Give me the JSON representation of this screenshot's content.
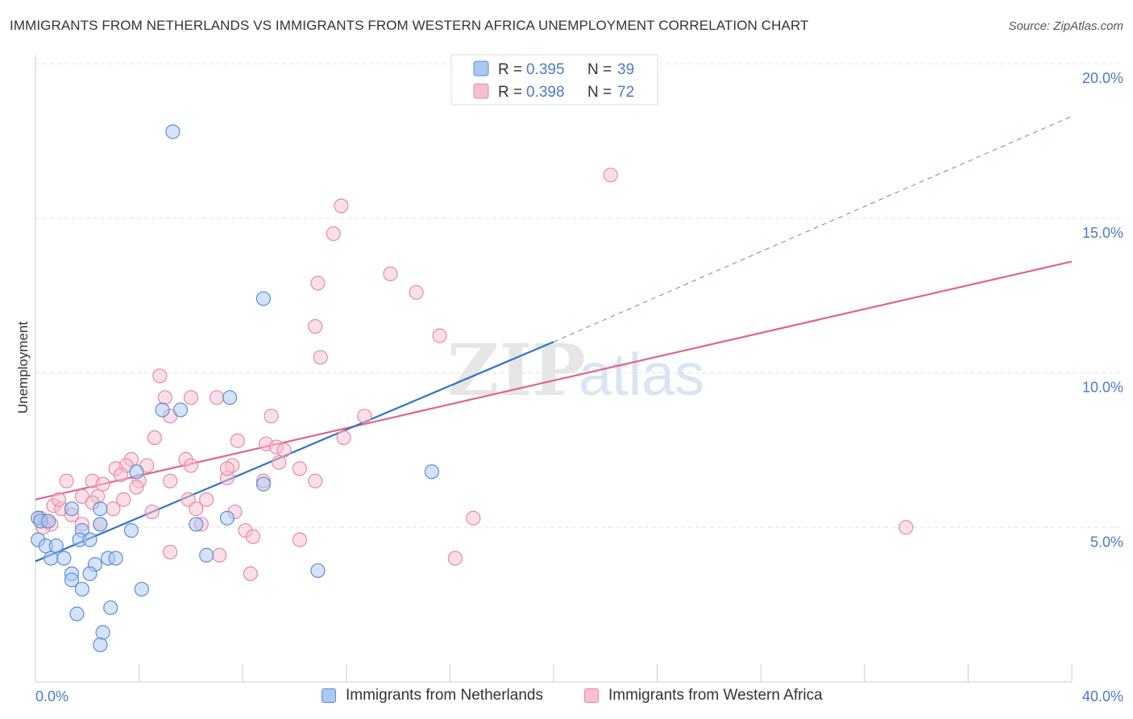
{
  "header": {
    "title": "IMMIGRANTS FROM NETHERLANDS VS IMMIGRANTS FROM WESTERN AFRICA UNEMPLOYMENT CORRELATION CHART",
    "source": "Source: ZipAtlas.com"
  },
  "watermark": {
    "zip": "ZIP",
    "atlas": "atlas"
  },
  "colors": {
    "netherlands_fill": "#a9c8f2",
    "netherlands_stroke": "#5b8fd6",
    "netherlands_line": "#2f73c9",
    "western_africa_fill": "#f7bfd0",
    "western_africa_stroke": "#e68aa8",
    "western_africa_line": "#e0648e",
    "axis_label_blue": "#4a7cc7",
    "grid": "#e3e3e3"
  },
  "legend_top": {
    "r_label": "R =",
    "n_label": "N =",
    "rows": [
      {
        "r": "0.395",
        "n": "39"
      },
      {
        "r": "0.398",
        "n": "72"
      }
    ]
  },
  "chart_data": {
    "type": "scatter",
    "title": "IMMIGRANTS FROM NETHERLANDS VS IMMIGRANTS FROM WESTERN AFRICA UNEMPLOYMENT CORRELATION CHART",
    "xlabel": "",
    "ylabel": "Unemployment",
    "xlim": [
      0,
      40
    ],
    "ylim": [
      0,
      20
    ],
    "x_tick_labels": [
      "0.0%",
      "40.0%"
    ],
    "y_tick_labels": [
      "5.0%",
      "10.0%",
      "15.0%",
      "20.0%"
    ],
    "y_ticks": [
      5,
      10,
      15,
      20
    ],
    "grid": true,
    "legend_position": "top-center",
    "series": [
      {
        "name": "Immigrants from Netherlands",
        "r": 0.395,
        "n": 39,
        "trend": {
          "x0": 0.0,
          "y0": 3.9,
          "x1": 20.0,
          "y1": 11.0,
          "dashed_to_x": 40.0,
          "dashed_to_y": 18.3
        },
        "points": [
          [
            5.3,
            17.8
          ],
          [
            8.8,
            12.4
          ],
          [
            7.5,
            9.2
          ],
          [
            4.9,
            8.8
          ],
          [
            5.6,
            8.8
          ],
          [
            15.3,
            6.8
          ],
          [
            3.9,
            6.8
          ],
          [
            8.8,
            6.4
          ],
          [
            1.4,
            5.6
          ],
          [
            2.5,
            5.6
          ],
          [
            0.1,
            5.3
          ],
          [
            0.2,
            5.2
          ],
          [
            2.5,
            5.1
          ],
          [
            6.2,
            5.1
          ],
          [
            7.4,
            5.3
          ],
          [
            1.8,
            4.9
          ],
          [
            3.7,
            4.9
          ],
          [
            0.1,
            4.6
          ],
          [
            1.7,
            4.6
          ],
          [
            2.1,
            4.6
          ],
          [
            0.4,
            4.4
          ],
          [
            0.8,
            4.4
          ],
          [
            0.6,
            4.0
          ],
          [
            1.1,
            4.0
          ],
          [
            2.8,
            4.0
          ],
          [
            3.1,
            4.0
          ],
          [
            6.6,
            4.1
          ],
          [
            2.3,
            3.8
          ],
          [
            1.4,
            3.5
          ],
          [
            2.1,
            3.5
          ],
          [
            10.9,
            3.6
          ],
          [
            1.4,
            3.3
          ],
          [
            1.8,
            3.0
          ],
          [
            4.1,
            3.0
          ],
          [
            2.9,
            2.4
          ],
          [
            1.6,
            2.2
          ],
          [
            2.6,
            1.6
          ],
          [
            2.5,
            1.2
          ],
          [
            0.5,
            5.2
          ]
        ]
      },
      {
        "name": "Immigrants from Western Africa",
        "r": 0.398,
        "n": 72,
        "trend": {
          "x0": 0.0,
          "y0": 5.9,
          "x1": 40.0,
          "y1": 13.6
        },
        "points": [
          [
            22.2,
            16.4
          ],
          [
            11.8,
            15.4
          ],
          [
            11.5,
            14.5
          ],
          [
            13.7,
            13.2
          ],
          [
            10.9,
            12.9
          ],
          [
            14.7,
            12.6
          ],
          [
            10.8,
            11.5
          ],
          [
            15.6,
            11.2
          ],
          [
            11.0,
            10.5
          ],
          [
            4.8,
            9.9
          ],
          [
            5.0,
            9.2
          ],
          [
            6.0,
            9.2
          ],
          [
            7.0,
            9.2
          ],
          [
            5.2,
            8.6
          ],
          [
            9.1,
            8.6
          ],
          [
            12.7,
            8.6
          ],
          [
            4.6,
            7.9
          ],
          [
            11.9,
            7.9
          ],
          [
            7.8,
            7.8
          ],
          [
            8.9,
            7.7
          ],
          [
            9.3,
            7.6
          ],
          [
            9.6,
            7.5
          ],
          [
            3.7,
            7.2
          ],
          [
            5.8,
            7.2
          ],
          [
            6.0,
            7.0
          ],
          [
            7.6,
            7.0
          ],
          [
            9.4,
            7.1
          ],
          [
            3.5,
            7.0
          ],
          [
            3.1,
            6.9
          ],
          [
            10.2,
            6.9
          ],
          [
            3.3,
            6.7
          ],
          [
            7.4,
            6.6
          ],
          [
            1.2,
            6.5
          ],
          [
            2.2,
            6.5
          ],
          [
            4.0,
            6.5
          ],
          [
            5.2,
            6.5
          ],
          [
            8.8,
            6.5
          ],
          [
            10.8,
            6.5
          ],
          [
            2.6,
            6.4
          ],
          [
            3.9,
            6.3
          ],
          [
            1.8,
            6.0
          ],
          [
            2.4,
            6.0
          ],
          [
            3.4,
            5.9
          ],
          [
            5.9,
            5.9
          ],
          [
            6.6,
            5.9
          ],
          [
            0.7,
            5.7
          ],
          [
            2.2,
            5.8
          ],
          [
            1.0,
            5.6
          ],
          [
            3.0,
            5.6
          ],
          [
            7.7,
            5.5
          ],
          [
            4.5,
            5.5
          ],
          [
            6.2,
            5.6
          ],
          [
            1.4,
            5.4
          ],
          [
            0.2,
            5.3
          ],
          [
            0.4,
            5.2
          ],
          [
            0.6,
            5.1
          ],
          [
            1.8,
            5.1
          ],
          [
            2.5,
            5.1
          ],
          [
            6.4,
            5.1
          ],
          [
            0.3,
            5.0
          ],
          [
            16.9,
            5.3
          ],
          [
            8.1,
            4.9
          ],
          [
            33.6,
            5.0
          ],
          [
            8.4,
            4.7
          ],
          [
            10.2,
            4.6
          ],
          [
            7.1,
            4.1
          ],
          [
            16.2,
            4.0
          ],
          [
            8.3,
            3.5
          ],
          [
            7.4,
            6.9
          ],
          [
            0.9,
            5.9
          ],
          [
            4.3,
            7.0
          ],
          [
            5.2,
            4.2
          ]
        ]
      }
    ]
  },
  "bottom_legend": [
    {
      "label": "Immigrants from Netherlands"
    },
    {
      "label": "Immigrants from Western Africa"
    }
  ]
}
